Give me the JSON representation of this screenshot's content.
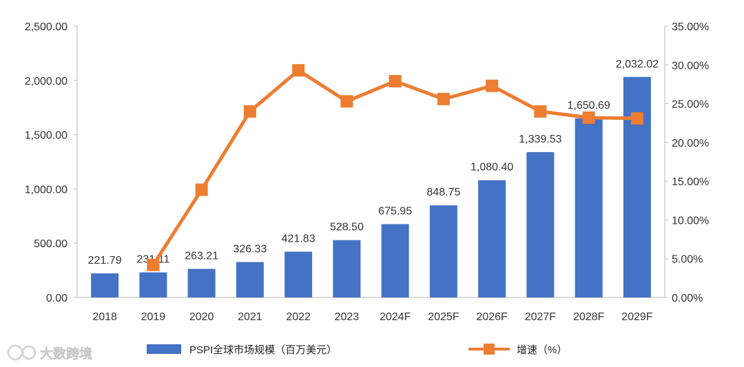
{
  "chart_data": {
    "type": "bar",
    "categories": [
      "2018",
      "2019",
      "2020",
      "2021",
      "2022",
      "2023",
      "2024F",
      "2025F",
      "2026F",
      "2027F",
      "2028F",
      "2029F"
    ],
    "series": [
      {
        "name": "PSPI全球市场规模（百万美元）",
        "type": "bar",
        "axis": "left",
        "color": "#4472C4",
        "values": [
          221.79,
          231.11,
          263.21,
          326.33,
          421.83,
          528.5,
          675.95,
          848.75,
          1080.4,
          1339.53,
          1650.69,
          2032.02
        ],
        "labels": [
          "221.79",
          "231.11",
          "263.21",
          "326.33",
          "421.83",
          "528.50",
          "675.95",
          "848.75",
          "1,080.40",
          "1,339.53",
          "1,650.69",
          "2,032.02"
        ]
      },
      {
        "name": "增速（%）",
        "type": "line",
        "axis": "right",
        "color": "#ED7D31",
        "marker": "square",
        "values": [
          null,
          4.2,
          13.9,
          24.0,
          29.3,
          25.3,
          27.9,
          25.6,
          27.3,
          24.0,
          23.2,
          23.1
        ]
      }
    ],
    "left_axis": {
      "ylim": [
        0,
        2500
      ],
      "ticks": [
        "0.00",
        "500.00",
        "1,000.00",
        "1,500.00",
        "2,000.00",
        "2,500.00"
      ]
    },
    "right_axis": {
      "ylim": [
        0,
        35
      ],
      "ticks": [
        "0.00%",
        "5.00%",
        "10.00%",
        "15.00%",
        "20.00%",
        "25.00%",
        "30.00%",
        "35.00%"
      ]
    },
    "grid": false,
    "legend_position": "bottom"
  },
  "watermark": "大数跨境"
}
